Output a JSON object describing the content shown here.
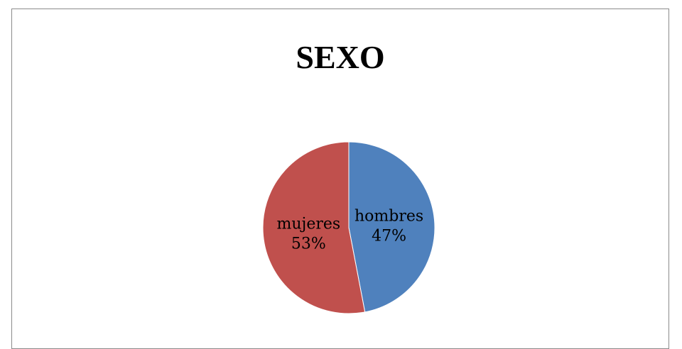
{
  "chart_data": {
    "type": "pie",
    "title": "SEXO",
    "slices": [
      {
        "label": "hombres",
        "percent_label": "47%",
        "value": 47,
        "color": "#4F81BD"
      },
      {
        "label": "mujeres",
        "percent_label": "53%",
        "value": 53,
        "color": "#C0504D"
      }
    ]
  }
}
